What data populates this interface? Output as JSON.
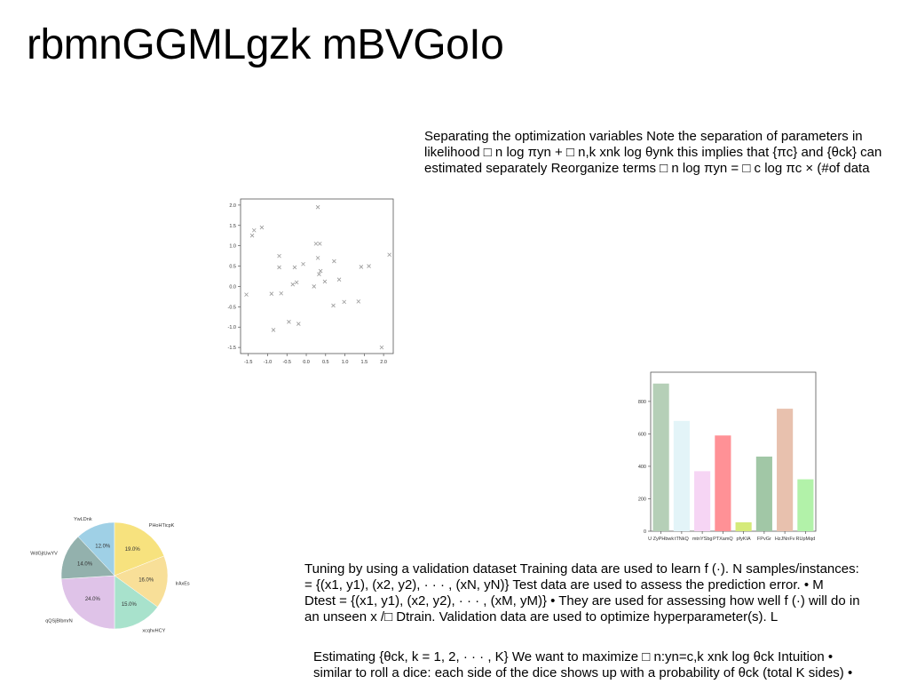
{
  "title": "rbmnGGMLgzk mBVGoIo",
  "paragraphs": [
    {
      "lines": [
        "Separating the optimization variables Note the separation of parameters in",
        "likelihood □ n log πyn + □ n,k xnk log θynk this implies that {πc} and {θck} can",
        "estimated separately Reorganize terms □ n log πyn = □ c log πc × (#of data"
      ]
    },
    {
      "lines": [
        "Tuning by using a validation dataset Training data are used to learn f (·). N samples/instances:",
        "= {(x1, y1), (x2, y2), · · · , (xN, yN)} Test data are used to assess the prediction error. • M",
        "Dtest = {(x1, y1), (x2, y2), · · · , (xM, yM)} • They are used for assessing how well f (·) will do in",
        "an unseen x /□ Dtrain. Validation data are used to optimize hyperparameter(s). L"
      ]
    },
    {
      "lines": [
        "Estimating {θck, k = 1, 2, · · · , K} We want to maximize □ n:yn=c,k xnk log θck Intuition •",
        "similar to roll a dice: each side of the dice shows up with a probability of θck (total K sides) •"
      ]
    }
  ],
  "chart_data": [
    {
      "type": "scatter",
      "marker": "x",
      "color": "#999999",
      "xlim": [
        -1.7,
        2.25
      ],
      "ylim": [
        -1.65,
        2.15
      ],
      "xticks": [
        "-1.5",
        "-1.0",
        "-0.5",
        "0.0",
        "0.5",
        "1.0",
        "1.5",
        "2.0"
      ],
      "yticks": [
        "2.0",
        "1.5",
        "1.0",
        "0.5",
        "0.0",
        "-0.5",
        "-1.0",
        "-1.5"
      ],
      "grid": false,
      "points": [
        [
          -1.4,
          1.25
        ],
        [
          -1.35,
          1.38
        ],
        [
          -1.15,
          1.45
        ],
        [
          -1.55,
          -0.2
        ],
        [
          -0.9,
          -0.18
        ],
        [
          -0.85,
          -1.07
        ],
        [
          -0.7,
          0.75
        ],
        [
          -0.7,
          0.47
        ],
        [
          -0.65,
          -0.17
        ],
        [
          -0.45,
          -0.87
        ],
        [
          -0.35,
          0.05
        ],
        [
          -0.3,
          0.47
        ],
        [
          -0.25,
          0.1
        ],
        [
          -0.2,
          -0.92
        ],
        [
          -0.08,
          0.55
        ],
        [
          0.2,
          0.0
        ],
        [
          0.25,
          1.05
        ],
        [
          0.3,
          1.95
        ],
        [
          0.3,
          0.7
        ],
        [
          0.33,
          0.3
        ],
        [
          0.35,
          1.05
        ],
        [
          0.37,
          0.38
        ],
        [
          0.48,
          0.12
        ],
        [
          0.7,
          -0.47
        ],
        [
          0.72,
          0.62
        ],
        [
          0.85,
          0.17
        ],
        [
          0.98,
          -0.38
        ],
        [
          1.35,
          -0.37
        ],
        [
          1.42,
          0.48
        ],
        [
          1.62,
          0.5
        ],
        [
          1.95,
          -1.5
        ],
        [
          2.15,
          0.78
        ]
      ]
    },
    {
      "type": "bar",
      "categories": [
        "U ZyPHbwk",
        "tTNkQ",
        "mtnYSbg",
        "PTXamQ",
        "pfyKIA",
        "FPvGr",
        "HzJNnFv",
        "RUpMqd"
      ],
      "values": [
        910,
        680,
        370,
        590,
        55,
        460,
        755,
        320
      ],
      "colors": [
        "#b5cfb7",
        "#e3f4f8",
        "#f6d5f4",
        "#ff9196",
        "#d5ea7a",
        "#a1c7a6",
        "#e8c1ae",
        "#b2f2a9"
      ],
      "ylim": [
        0,
        980
      ],
      "yticks": [
        0,
        200,
        400,
        600,
        800
      ],
      "grid": false
    },
    {
      "type": "pie",
      "labels": [
        "YwLDnk",
        "PHoHTicpK",
        "IrAxEs",
        "xcqhvHCY",
        "qQSjBlbmrN",
        "WdGjtUwYV"
      ],
      "values": [
        12.0,
        19.0,
        16.0,
        15.0,
        24.0,
        14.0
      ],
      "pct_labels": [
        "12.0%",
        "19.0%",
        "16.0%",
        "15.0%",
        "24.0%",
        "14.0%"
      ],
      "colors": [
        "#9fd0e6",
        "#f7e27e",
        "#f8df98",
        "#a8e2cc",
        "#dfc3e8",
        "#93b1ad"
      ]
    }
  ]
}
